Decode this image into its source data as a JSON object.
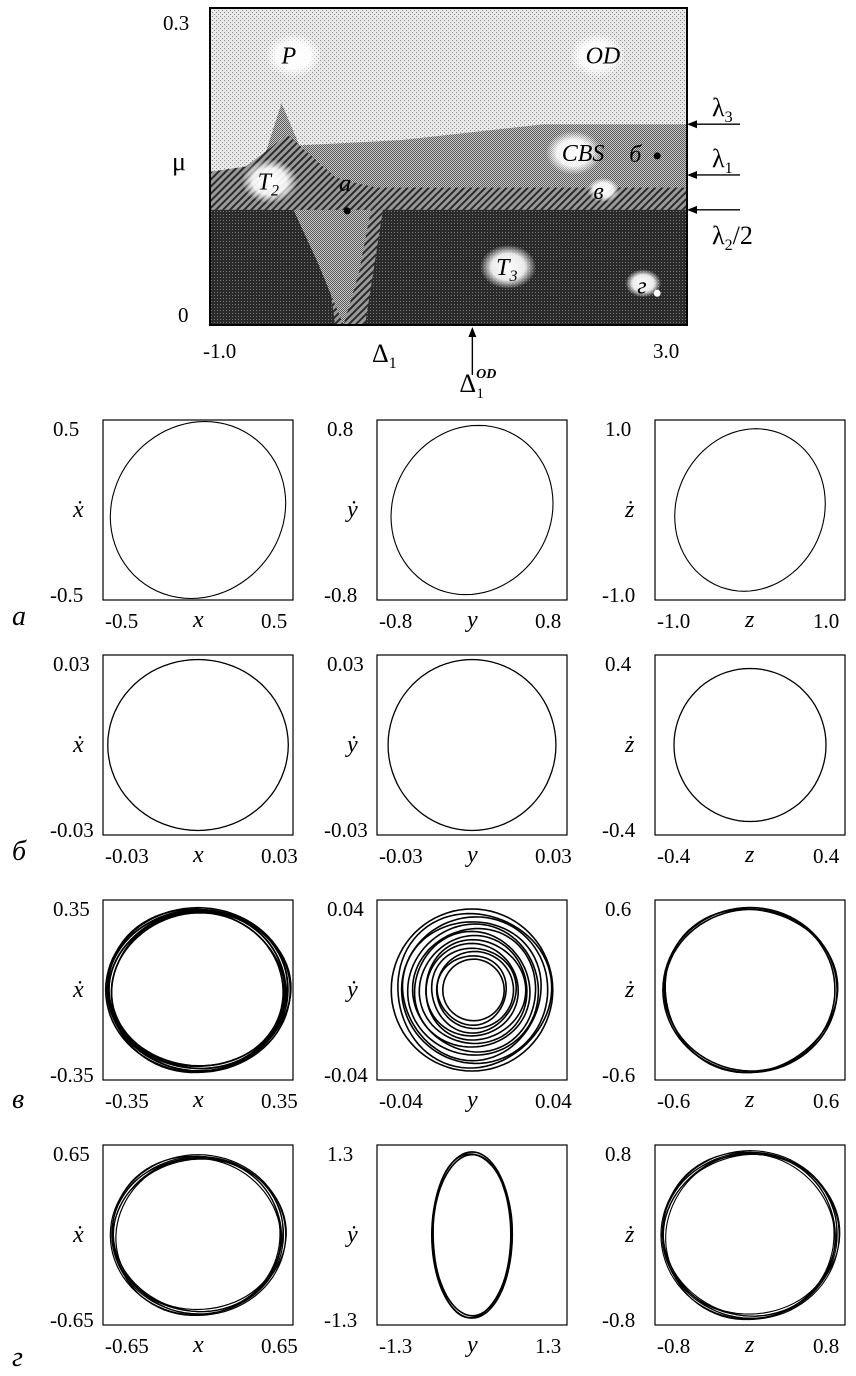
{
  "chart_data": [
    {
      "type": "heatmap",
      "title": "",
      "xlabel": "Δ",
      "xlabel_sub": "1",
      "ylabel": "μ",
      "xlim": [
        -1.0,
        3.0
      ],
      "ylim": [
        0,
        0.3
      ],
      "x_ticks": [
        "-1.0",
        "3.0"
      ],
      "y_ticks": [
        "0.3",
        "0"
      ],
      "regions": [
        "P",
        "OD",
        "CBS",
        "T",
        "T"
      ],
      "region_subs": [
        "",
        "",
        "",
        "2",
        "3"
      ],
      "points": [
        {
          "label": "а",
          "x": 0.15,
          "y": 0.108
        },
        {
          "label": "б",
          "x": 2.75,
          "y": 0.16
        },
        {
          "label": "в",
          "x": 2.55,
          "y": 0.125
        },
        {
          "label": "г",
          "x": 2.75,
          "y": 0.03
        }
      ],
      "boundaries": [
        {
          "label": "λ",
          "sub": "3",
          "y": 0.19
        },
        {
          "label": "λ",
          "sub": "1",
          "y": 0.142
        },
        {
          "label": "λ",
          "sub": "2",
          "suffix": "/2",
          "y": 0.109
        }
      ],
      "od_marker": {
        "label": "Δ",
        "sub": "1",
        "sup": "OD",
        "x": 1.2
      }
    },
    {
      "type": "scatter",
      "row": "а",
      "panels": [
        {
          "var": "x",
          "dot": "ẋ",
          "lim": [
            -0.5,
            0.5
          ],
          "ticks": [
            "-0.5",
            "0.5"
          ],
          "yticks": [
            "0.5",
            "-0.5"
          ],
          "ax": 0.46,
          "ay": 0.49
        },
        {
          "var": "y",
          "dot": "ẏ",
          "lim": [
            -0.8,
            0.8
          ],
          "ticks": [
            "-0.8",
            "0.8"
          ],
          "yticks": [
            "0.8",
            "-0.8"
          ],
          "ax": 0.68,
          "ay": 0.75
        },
        {
          "var": "z",
          "dot": "ż",
          "lim": [
            -1.0,
            1.0
          ],
          "ticks": [
            "-1.0",
            "1.0"
          ],
          "yticks": [
            "1.0",
            "-1.0"
          ],
          "ax": 0.79,
          "ay": 0.9
        }
      ]
    },
    {
      "type": "scatter",
      "row": "б",
      "panels": [
        {
          "var": "x",
          "dot": "ẋ",
          "lim": [
            -0.03,
            0.03
          ],
          "ticks": [
            "-0.03",
            "0.03"
          ],
          "yticks": [
            "0.03",
            "-0.03"
          ],
          "ax": 0.0285,
          "ay": 0.0285
        },
        {
          "var": "y",
          "dot": "ẏ",
          "lim": [
            -0.03,
            0.03
          ],
          "ticks": [
            "-0.03",
            "0.03"
          ],
          "yticks": [
            "0.03",
            "-0.03"
          ],
          "ax": 0.0265,
          "ay": 0.0285
        },
        {
          "var": "z",
          "dot": "ż",
          "lim": [
            -0.4,
            0.4
          ],
          "ticks": [
            "-0.4",
            "0.4"
          ],
          "yticks": [
            "0.4",
            "-0.4"
          ],
          "ax": 0.32,
          "ay": 0.34
        }
      ]
    },
    {
      "type": "scatter",
      "row": "в",
      "panels": [
        {
          "var": "x",
          "dot": "ẋ",
          "lim": [
            -0.35,
            0.35
          ],
          "ticks": [
            "-0.35",
            "0.35"
          ],
          "yticks": [
            "0.35",
            "-0.35"
          ],
          "ax": 0.34,
          "ay": 0.32
        },
        {
          "var": "y",
          "dot": "ẏ",
          "lim": [
            -0.04,
            0.04
          ],
          "ticks": [
            "-0.04",
            "0.04"
          ],
          "yticks": [
            "0.04",
            "-0.04"
          ],
          "ax": 0.034,
          "ay": 0.036
        },
        {
          "var": "z",
          "dot": "ż",
          "lim": [
            -0.6,
            0.6
          ],
          "ticks": [
            "-0.6",
            "0.6"
          ],
          "yticks": [
            "0.6",
            "-0.6"
          ],
          "ax": 0.55,
          "ay": 0.55
        }
      ]
    },
    {
      "type": "scatter",
      "row": "г",
      "panels": [
        {
          "var": "x",
          "dot": "ẋ",
          "lim": [
            -0.65,
            0.65
          ],
          "ticks": [
            "-0.65",
            "0.65"
          ],
          "yticks": [
            "0.65",
            "-0.65"
          ],
          "ax": 0.6,
          "ay": 0.58
        },
        {
          "var": "y",
          "dot": "ẏ",
          "lim": [
            -1.3,
            1.3
          ],
          "ticks": [
            "-1.3",
            "1.3"
          ],
          "yticks": [
            "1.3",
            "-1.3"
          ],
          "ax": 0.55,
          "ay": 1.2
        },
        {
          "var": "z",
          "dot": "ż",
          "lim": [
            -0.8,
            0.8
          ],
          "ticks": [
            "-0.8",
            "0.8"
          ],
          "yticks": [
            "0.8",
            "-0.8"
          ],
          "ax": 0.75,
          "ay": 0.75
        }
      ]
    }
  ]
}
